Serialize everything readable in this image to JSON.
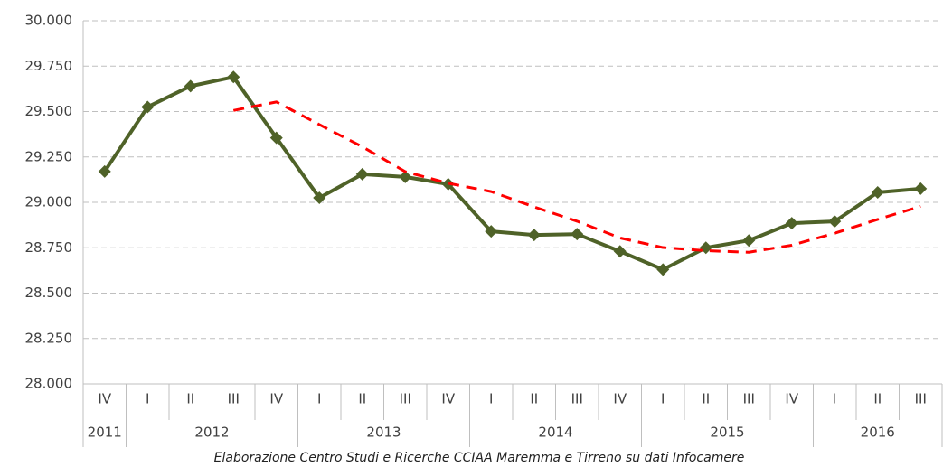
{
  "chart_data": {
    "type": "line",
    "categories": [
      "IV",
      "I",
      "II",
      "III",
      "IV",
      "I",
      "II",
      "III",
      "IV",
      "I",
      "II",
      "III",
      "IV",
      "I",
      "II",
      "III",
      "IV",
      "I",
      "II",
      "III"
    ],
    "category_years": [
      "2011",
      "2012",
      "2012",
      "2012",
      "2012",
      "2013",
      "2013",
      "2013",
      "2013",
      "2014",
      "2014",
      "2014",
      "2014",
      "2015",
      "2015",
      "2015",
      "2015",
      "2016",
      "2016",
      "2016"
    ],
    "series": [
      {
        "color": "#4f6228",
        "marker": "diamond",
        "dashed": false,
        "values": [
          29170,
          29525,
          29640,
          29690,
          29355,
          29025,
          29155,
          29140,
          29100,
          28840,
          28820,
          28825,
          28730,
          28630,
          28750,
          28790,
          28885,
          28895,
          29055,
          29075
        ]
      },
      {
        "color": "#ff0000",
        "marker": null,
        "dashed": true,
        "values": [
          null,
          null,
          null,
          29506,
          29553,
          29428,
          29306,
          29169,
          29105,
          29059,
          28975,
          28896,
          28804,
          28751,
          28734,
          28725,
          28764,
          28830,
          28906,
          28978
        ]
      }
    ],
    "ylim": [
      28000,
      30000
    ],
    "yticks": [
      {
        "value": 28000,
        "label": "28.000"
      },
      {
        "value": 28250,
        "label": "28.250"
      },
      {
        "value": 28500,
        "label": "28.500"
      },
      {
        "value": 28750,
        "label": "28.750"
      },
      {
        "value": 29000,
        "label": "29.000"
      },
      {
        "value": 29250,
        "label": "29.250"
      },
      {
        "value": 29500,
        "label": "29.500"
      },
      {
        "value": 29750,
        "label": "29.750"
      },
      {
        "value": 30000,
        "label": "30.000"
      }
    ],
    "grid": true,
    "caption": "Elaborazione Centro Studi e Ricerche CCIAA Maremma e Tirreno su dati Infocamere"
  }
}
